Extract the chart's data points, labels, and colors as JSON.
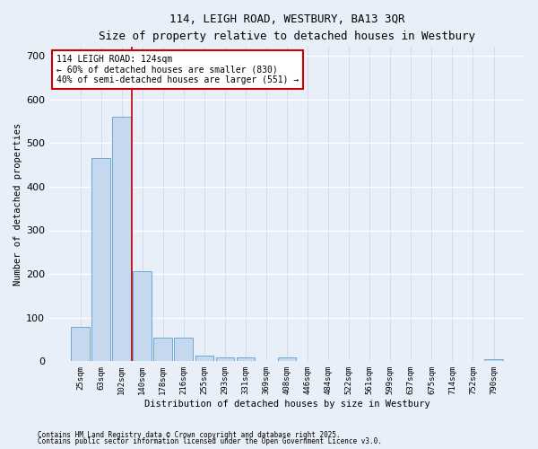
{
  "title1": "114, LEIGH ROAD, WESTBURY, BA13 3QR",
  "title2": "Size of property relative to detached houses in Westbury",
  "xlabel": "Distribution of detached houses by size in Westbury",
  "ylabel": "Number of detached properties",
  "categories": [
    "25sqm",
    "63sqm",
    "102sqm",
    "140sqm",
    "178sqm",
    "216sqm",
    "255sqm",
    "293sqm",
    "331sqm",
    "369sqm",
    "408sqm",
    "446sqm",
    "484sqm",
    "522sqm",
    "561sqm",
    "599sqm",
    "637sqm",
    "675sqm",
    "714sqm",
    "752sqm",
    "790sqm"
  ],
  "values": [
    78,
    465,
    560,
    207,
    55,
    55,
    14,
    8,
    8,
    0,
    8,
    0,
    0,
    0,
    0,
    0,
    0,
    0,
    0,
    0,
    5
  ],
  "bar_color": "#c5d8ee",
  "bar_edge_color": "#6aaad4",
  "background_color": "#e8eff8",
  "plot_bg_color": "#e8eff8",
  "grid_color": "#d0d8e8",
  "vline_color": "#c00000",
  "vline_x": 2.5,
  "annotation_text": "114 LEIGH ROAD: 124sqm\n← 60% of detached houses are smaller (830)\n40% of semi-detached houses are larger (551) →",
  "annotation_box_color": "#cc0000",
  "footnote1": "Contains HM Land Registry data © Crown copyright and database right 2025.",
  "footnote2": "Contains public sector information licensed under the Open Government Licence v3.0.",
  "ylim": [
    0,
    720
  ],
  "yticks": [
    0,
    100,
    200,
    300,
    400,
    500,
    600,
    700
  ],
  "figsize": [
    6.0,
    5.0
  ],
  "dpi": 100
}
